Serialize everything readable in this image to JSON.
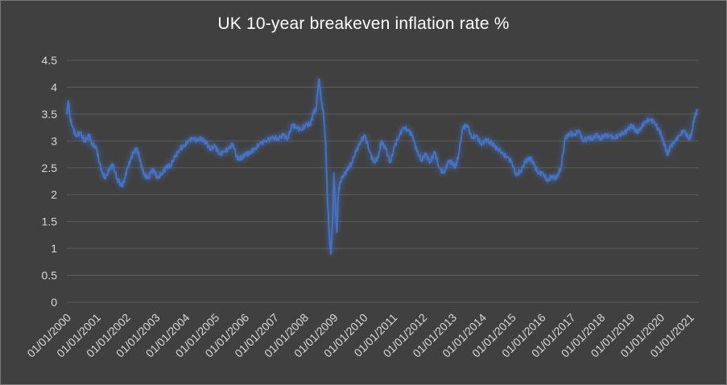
{
  "chart_data": {
    "type": "line",
    "title": "UK 10-year breakeven inflation rate %",
    "xlabel": "",
    "ylabel": "",
    "ylim": [
      0,
      4.5
    ],
    "yticks": [
      "0",
      "0.5",
      "1",
      "1.5",
      "2",
      "2.5",
      "3",
      "3.5",
      "4",
      "4.5"
    ],
    "xticks": [
      "01/01/2000",
      "01/01/2001",
      "01/01/2002",
      "01/01/2003",
      "01/01/2004",
      "01/01/2005",
      "01/01/2006",
      "01/01/2007",
      "01/01/2008",
      "01/01/2009",
      "01/01/2010",
      "01/01/2011",
      "01/01/2012",
      "01/01/2013",
      "01/01/2014",
      "01/01/2015",
      "01/01/2016",
      "01/01/2017",
      "01/01/2018",
      "01/01/2019",
      "01/01/2020",
      "01/01/2021"
    ],
    "xlim": [
      2000.0,
      2021.3
    ],
    "grid": true,
    "line_color": "#4472c4",
    "background": "#404040",
    "series": [
      {
        "name": "UK 10-year breakeven inflation rate",
        "x": [
          2000.0,
          2000.05,
          2000.1,
          2000.2,
          2000.3,
          2000.45,
          2000.6,
          2000.75,
          2000.85,
          2001.0,
          2001.1,
          2001.2,
          2001.3,
          2001.45,
          2001.55,
          2001.7,
          2001.85,
          2001.95,
          2002.05,
          2002.15,
          2002.25,
          2002.35,
          2002.45,
          2002.55,
          2002.65,
          2002.75,
          2002.85,
          2002.95,
          2003.05,
          2003.2,
          2003.35,
          2003.5,
          2003.65,
          2003.8,
          2003.95,
          2004.1,
          2004.25,
          2004.4,
          2004.55,
          2004.7,
          2004.85,
          2005.0,
          2005.15,
          2005.3,
          2005.45,
          2005.6,
          2005.75,
          2005.9,
          2006.05,
          2006.2,
          2006.35,
          2006.5,
          2006.7,
          2006.9,
          2007.1,
          2007.3,
          2007.45,
          2007.6,
          2007.75,
          2007.9,
          2008.05,
          2008.2,
          2008.3,
          2008.4,
          2008.5,
          2008.58,
          2008.65,
          2008.72,
          2008.78,
          2008.85,
          2008.9,
          2008.95,
          2009.0,
          2009.05,
          2009.1,
          2009.15,
          2009.2,
          2009.3,
          2009.45,
          2009.6,
          2009.75,
          2009.9,
          2010.05,
          2010.2,
          2010.35,
          2010.5,
          2010.6,
          2010.75,
          2010.9,
          2011.05,
          2011.2,
          2011.35,
          2011.5,
          2011.65,
          2011.8,
          2011.95,
          2012.1,
          2012.25,
          2012.4,
          2012.55,
          2012.7,
          2012.85,
          2013.0,
          2013.1,
          2013.2,
          2013.35,
          2013.5,
          2013.65,
          2013.8,
          2013.95,
          2014.1,
          2014.25,
          2014.4,
          2014.55,
          2014.7,
          2014.85,
          2015.0,
          2015.15,
          2015.3,
          2015.45,
          2015.6,
          2015.75,
          2015.9,
          2016.05,
          2016.2,
          2016.35,
          2016.5,
          2016.65,
          2016.8,
          2016.95,
          2017.1,
          2017.25,
          2017.4,
          2017.55,
          2017.7,
          2017.85,
          2018.0,
          2018.15,
          2018.3,
          2018.45,
          2018.6,
          2018.75,
          2018.9,
          2019.05,
          2019.2,
          2019.35,
          2019.5,
          2019.65,
          2019.8,
          2019.95,
          2020.05,
          2020.15,
          2020.25,
          2020.35,
          2020.5,
          2020.65,
          2020.8,
          2020.95,
          2021.05,
          2021.15,
          2021.25
        ],
        "values": [
          3.5,
          3.75,
          3.45,
          3.25,
          3.1,
          3.15,
          3.0,
          3.1,
          2.95,
          2.85,
          2.6,
          2.4,
          2.3,
          2.5,
          2.55,
          2.3,
          2.15,
          2.3,
          2.5,
          2.65,
          2.8,
          2.85,
          2.7,
          2.45,
          2.35,
          2.3,
          2.45,
          2.45,
          2.3,
          2.4,
          2.5,
          2.55,
          2.7,
          2.85,
          2.9,
          3.0,
          3.05,
          3.0,
          3.05,
          2.95,
          2.85,
          2.9,
          2.75,
          2.8,
          2.85,
          2.95,
          2.65,
          2.7,
          2.75,
          2.8,
          2.85,
          2.95,
          3.0,
          3.05,
          3.05,
          3.1,
          3.05,
          3.3,
          3.25,
          3.2,
          3.3,
          3.3,
          3.5,
          3.6,
          4.15,
          3.75,
          3.5,
          3.0,
          2.0,
          1.2,
          0.9,
          1.4,
          2.4,
          1.8,
          1.3,
          2.0,
          2.2,
          2.35,
          2.45,
          2.6,
          2.8,
          3.0,
          3.1,
          2.8,
          2.6,
          2.7,
          3.0,
          2.85,
          2.6,
          2.9,
          3.1,
          3.25,
          3.2,
          3.1,
          2.8,
          2.65,
          2.75,
          2.6,
          2.8,
          2.5,
          2.4,
          2.6,
          2.6,
          2.5,
          2.75,
          3.25,
          3.3,
          3.05,
          3.1,
          2.95,
          3.0,
          3.0,
          2.9,
          2.85,
          2.75,
          2.7,
          2.6,
          2.35,
          2.45,
          2.6,
          2.7,
          2.55,
          2.4,
          2.4,
          2.25,
          2.35,
          2.3,
          2.5,
          3.05,
          3.15,
          3.1,
          3.2,
          3.0,
          3.05,
          3.05,
          3.1,
          3.05,
          3.1,
          3.1,
          3.05,
          3.1,
          3.15,
          3.2,
          3.3,
          3.15,
          3.25,
          3.35,
          3.4,
          3.35,
          3.2,
          3.1,
          2.9,
          2.75,
          2.9,
          3.0,
          3.1,
          3.2,
          3.05,
          3.1,
          3.45,
          3.55
        ]
      }
    ]
  }
}
